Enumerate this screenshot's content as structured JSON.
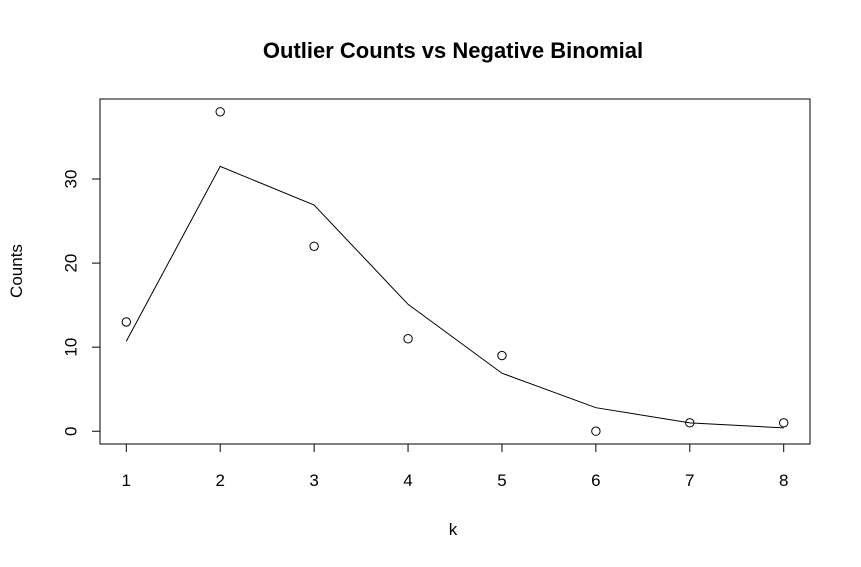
{
  "chart_data": {
    "type": "scatter",
    "title": "Outlier Counts vs Negative Binomial",
    "xlabel": "k",
    "ylabel": "Counts",
    "xlim": [
      0.72,
      8.28
    ],
    "ylim": [
      -1.52,
      39.52
    ],
    "x_ticks": [
      "1",
      "2",
      "3",
      "4",
      "5",
      "6",
      "7",
      "8"
    ],
    "y_ticks": [
      "0",
      "10",
      "20",
      "30"
    ],
    "grid": false,
    "series": [
      {
        "kind": "points",
        "marker": "open-circle",
        "x": [
          1,
          2,
          3,
          4,
          5,
          6,
          7,
          8
        ],
        "values": [
          13,
          38,
          22,
          11,
          9,
          0,
          1,
          1
        ]
      },
      {
        "kind": "line",
        "x": [
          1,
          2,
          3,
          4,
          5,
          6,
          7,
          8
        ],
        "values": [
          10.7,
          31.5,
          26.9,
          15.1,
          6.9,
          2.8,
          1.0,
          0.4
        ]
      }
    ]
  }
}
